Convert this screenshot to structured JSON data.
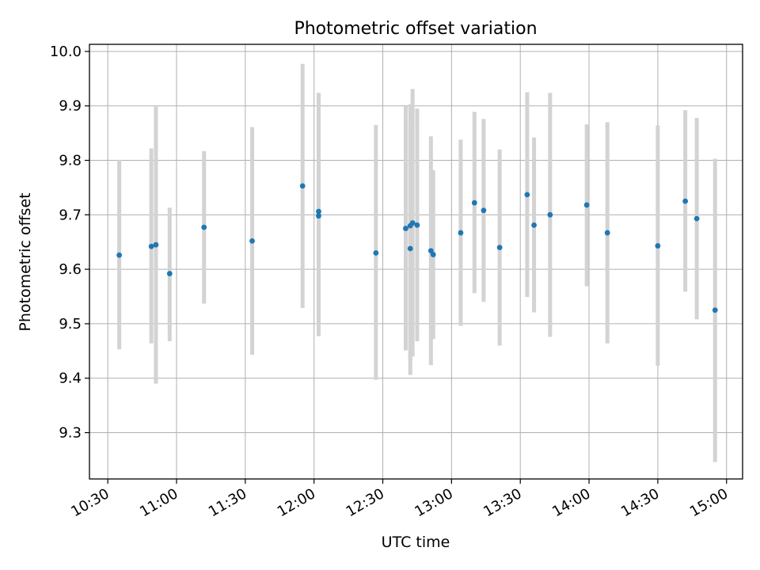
{
  "chart_data": {
    "type": "scatter",
    "title": "Photometric offset variation",
    "xlabel": "UTC time",
    "ylabel": "Photometric offset",
    "x_axis_type": "time",
    "xlim": [
      "10:22",
      "15:07"
    ],
    "ylim": [
      9.215,
      10.013
    ],
    "x_ticks": [
      "10:30",
      "11:00",
      "11:30",
      "12:00",
      "12:30",
      "13:00",
      "13:30",
      "14:00",
      "14:30",
      "15:00"
    ],
    "y_ticks": [
      9.3,
      9.4,
      9.5,
      9.6,
      9.7,
      9.8,
      9.9,
      10.0
    ],
    "y_tick_labels": [
      "9.3",
      "9.4",
      "9.5",
      "9.6",
      "9.7",
      "9.8",
      "9.9",
      "10.0"
    ],
    "grid": true,
    "point_color": "#1f77b4",
    "errorbar_color": "#d3d3d3",
    "series": [
      {
        "points": [
          {
            "x": "10:35",
            "y": 9.626,
            "y_low": 9.453,
            "y_high": 9.801
          },
          {
            "x": "10:49",
            "y": 9.642,
            "y_low": 9.464,
            "y_high": 9.822
          },
          {
            "x": "10:51",
            "y": 9.645,
            "y_low": 9.39,
            "y_high": 9.9
          },
          {
            "x": "10:57",
            "y": 9.592,
            "y_low": 9.468,
            "y_high": 9.713
          },
          {
            "x": "11:12",
            "y": 9.677,
            "y_low": 9.537,
            "y_high": 9.817
          },
          {
            "x": "11:33",
            "y": 9.652,
            "y_low": 9.443,
            "y_high": 9.861
          },
          {
            "x": "11:55",
            "y": 9.753,
            "y_low": 9.529,
            "y_high": 9.977
          },
          {
            "x": "12:02",
            "y": 9.698,
            "y_low": 9.477,
            "y_high": 9.917
          },
          {
            "x": "12:02",
            "y": 9.706,
            "y_low": 9.489,
            "y_high": 9.924
          },
          {
            "x": "12:27",
            "y": 9.63,
            "y_low": 9.397,
            "y_high": 9.865
          },
          {
            "x": "12:40",
            "y": 9.675,
            "y_low": 9.451,
            "y_high": 9.899
          },
          {
            "x": "12:42",
            "y": 9.638,
            "y_low": 9.406,
            "y_high": 9.871
          },
          {
            "x": "12:42",
            "y": 9.68,
            "y_low": 9.431,
            "y_high": 9.903
          },
          {
            "x": "12:43",
            "y": 9.685,
            "y_low": 9.44,
            "y_high": 9.931
          },
          {
            "x": "12:45",
            "y": 9.681,
            "y_low": 9.468,
            "y_high": 9.895
          },
          {
            "x": "12:51",
            "y": 9.634,
            "y_low": 9.424,
            "y_high": 9.844
          },
          {
            "x": "12:52",
            "y": 9.627,
            "y_low": 9.472,
            "y_high": 9.782
          },
          {
            "x": "13:04",
            "y": 9.667,
            "y_low": 9.496,
            "y_high": 9.838
          },
          {
            "x": "13:10",
            "y": 9.722,
            "y_low": 9.556,
            "y_high": 9.889
          },
          {
            "x": "13:14",
            "y": 9.708,
            "y_low": 9.54,
            "y_high": 9.876
          },
          {
            "x": "13:21",
            "y": 9.64,
            "y_low": 9.46,
            "y_high": 9.82
          },
          {
            "x": "13:33",
            "y": 9.737,
            "y_low": 9.549,
            "y_high": 9.925
          },
          {
            "x": "13:36",
            "y": 9.681,
            "y_low": 9.521,
            "y_high": 9.842
          },
          {
            "x": "13:43",
            "y": 9.7,
            "y_low": 9.476,
            "y_high": 9.924
          },
          {
            "x": "13:59",
            "y": 9.718,
            "y_low": 9.569,
            "y_high": 9.866
          },
          {
            "x": "14:08",
            "y": 9.667,
            "y_low": 9.464,
            "y_high": 9.87
          },
          {
            "x": "14:30",
            "y": 9.643,
            "y_low": 9.423,
            "y_high": 9.864
          },
          {
            "x": "14:42",
            "y": 9.725,
            "y_low": 9.559,
            "y_high": 9.892
          },
          {
            "x": "14:47",
            "y": 9.693,
            "y_low": 9.508,
            "y_high": 9.878
          },
          {
            "x": "14:55",
            "y": 9.525,
            "y_low": 9.246,
            "y_high": 9.803
          }
        ]
      }
    ]
  }
}
